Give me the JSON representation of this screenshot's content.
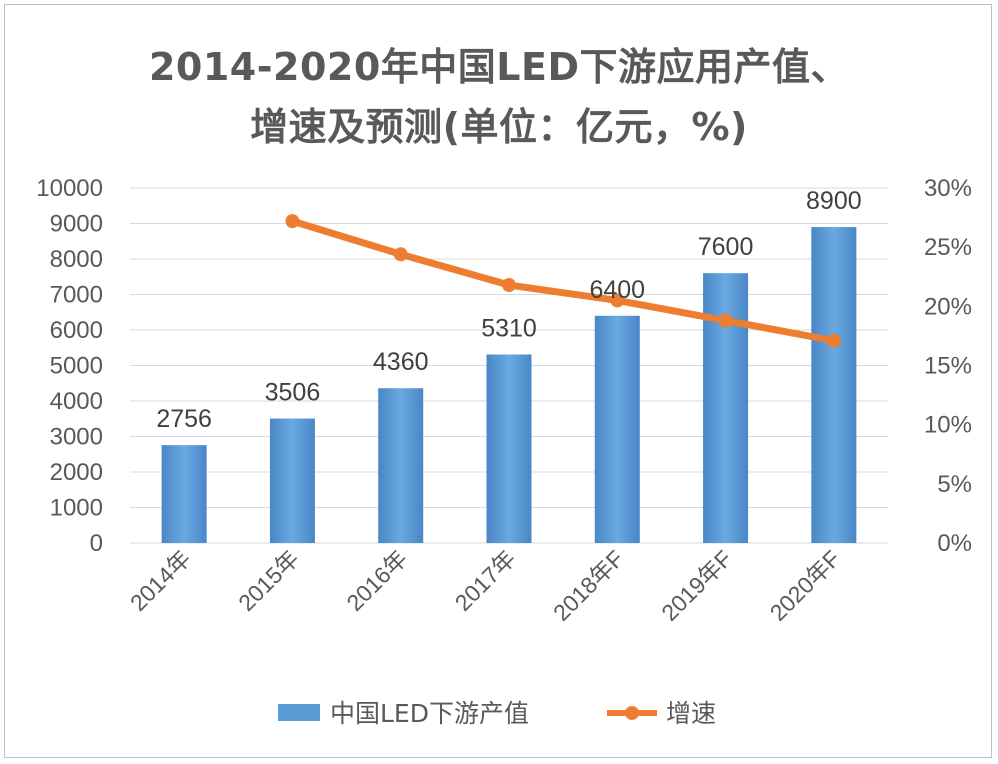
{
  "title_line1": "2014-2020年中国LED下游应用产值、",
  "title_line2": "增速及预测(单位：亿元，%)",
  "chart_data": {
    "type": "bar",
    "categories": [
      "2014年",
      "2015年",
      "2016年",
      "2017年",
      "2018年F",
      "2019年F",
      "2020年F"
    ],
    "series": [
      {
        "name": "中国LED下游产值",
        "type": "bar",
        "axis": "left",
        "values": [
          2756,
          3506,
          4360,
          5310,
          6400,
          7600,
          8900
        ],
        "color": "#5b9bd5"
      },
      {
        "name": "增速",
        "type": "line",
        "axis": "right",
        "values": [
          null,
          27.2,
          24.4,
          21.8,
          20.5,
          18.8,
          17.1
        ],
        "color": "#ed7d31"
      }
    ],
    "left_axis": {
      "ylim": [
        0,
        10000
      ],
      "ticks": [
        "0",
        "1000",
        "2000",
        "3000",
        "4000",
        "5000",
        "6000",
        "7000",
        "8000",
        "9000",
        "10000"
      ]
    },
    "right_axis": {
      "ylim": [
        0,
        30
      ],
      "ticks": [
        "0%",
        "5%",
        "10%",
        "15%",
        "20%",
        "25%",
        "30%"
      ]
    },
    "data_labels": [
      "2756",
      "3506",
      "4360",
      "5310",
      "6400",
      "7600",
      "8900"
    ],
    "grid": true,
    "legend_position": "bottom"
  }
}
